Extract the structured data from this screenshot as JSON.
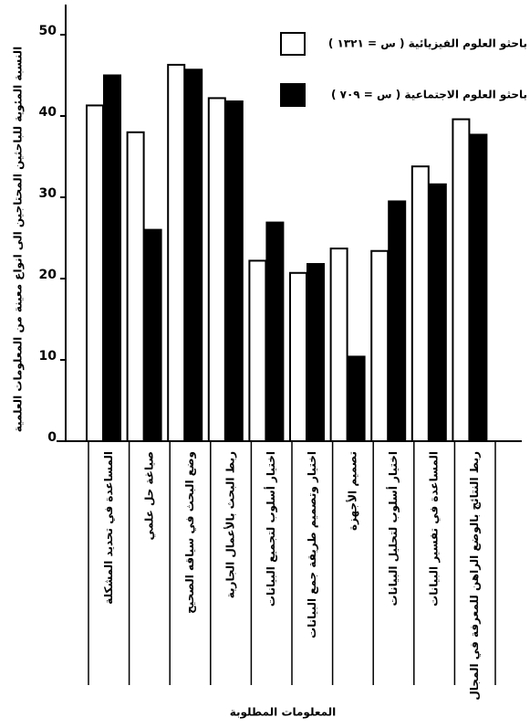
{
  "chart_data": {
    "type": "bar",
    "y_label": "النسبة المئوية للباحثين المحتاجين الى انواع معينة من المعلومات العلمية",
    "x_label": "المعلومات المطلوبة",
    "categories": [
      "المساعدة في تحديد المشكلة",
      "صياغة حل علمي",
      "وضع البحث في سياقه الصحيح",
      "ربط البحث بالأعمال الجارية",
      "اختيار أسلوب لتجميع البيانات",
      "اختيار وتصميم طريقة جمع البيانات",
      "تصميم الأجهزة",
      "اختيار أسلوب لتحليل البيانات",
      "المساعدة في تفسير البيانات",
      "ربط النتائج بالوضع الراهن للمعرفة في المجال"
    ],
    "series": [
      {
        "name": "باحثو العلوم الفيزيائية ( س = ١٣٢١ )",
        "color": "#ffffff",
        "values": [
          41.3,
          38,
          46.3,
          42.2,
          22.2,
          20.7,
          23.7,
          23.4,
          33.8,
          39.6
        ]
      },
      {
        "name": "باحثو العلوم الاجتماعية ( س = ٧٠٩ )",
        "color": "#000000",
        "values": [
          45,
          26,
          45.7,
          41.8,
          26.9,
          21.8,
          10.4,
          29.5,
          31.6,
          37.7
        ]
      }
    ],
    "ylim": [
      0,
      50
    ],
    "yticks": [
      0,
      10,
      20,
      30,
      40,
      50
    ]
  }
}
